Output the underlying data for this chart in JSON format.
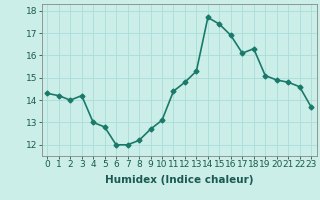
{
  "x": [
    0,
    1,
    2,
    3,
    4,
    5,
    6,
    7,
    8,
    9,
    10,
    11,
    12,
    13,
    14,
    15,
    16,
    17,
    18,
    19,
    20,
    21,
    22,
    23
  ],
  "y": [
    14.3,
    14.2,
    14.0,
    14.2,
    13.0,
    12.8,
    12.0,
    12.0,
    12.2,
    12.7,
    13.1,
    14.4,
    14.8,
    15.3,
    17.7,
    17.4,
    16.9,
    16.1,
    16.3,
    15.1,
    14.9,
    14.8,
    14.6,
    13.7
  ],
  "line_color": "#1a7a6a",
  "marker": "D",
  "marker_size": 2.5,
  "bg_color": "#cceee8",
  "grid_color": "#aaddda",
  "xlabel": "Humidex (Indice chaleur)",
  "ylim": [
    11.5,
    18.3
  ],
  "xlim": [
    -0.5,
    23.5
  ],
  "yticks": [
    12,
    13,
    14,
    15,
    16,
    17,
    18
  ],
  "xticks": [
    0,
    1,
    2,
    3,
    4,
    5,
    6,
    7,
    8,
    9,
    10,
    11,
    12,
    13,
    14,
    15,
    16,
    17,
    18,
    19,
    20,
    21,
    22,
    23
  ],
  "xlabel_fontsize": 7.5,
  "tick_fontsize": 6.5,
  "linewidth": 1.2
}
